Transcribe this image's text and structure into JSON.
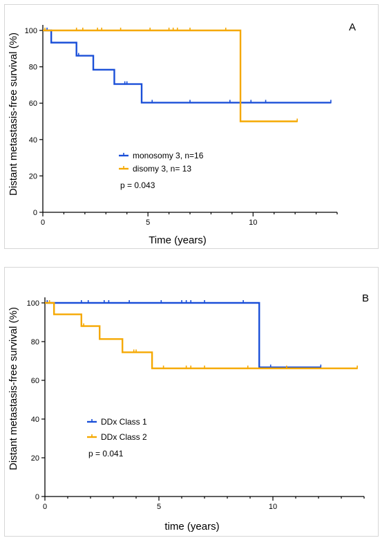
{
  "chart_data": [
    {
      "type": "line",
      "title": "",
      "panel_label": "A",
      "xlabel": "Time (years)",
      "ylabel": "Distant metastasis-free survival (%)",
      "xlim": [
        0,
        14
      ],
      "ylim": [
        0,
        100
      ],
      "xticks": [
        0,
        5,
        10
      ],
      "yticks": [
        0,
        20,
        40,
        60,
        80,
        100
      ],
      "p_value": "p = 0.043",
      "legend_position": "lower-left",
      "series": [
        {
          "name": "monosomy 3, n=16",
          "color": "#1a4fd8",
          "steps": [
            [
              0,
              100
            ],
            [
              0.4,
              93.3
            ],
            [
              1.6,
              86.1
            ],
            [
              2.4,
              78.4
            ],
            [
              3.4,
              70.5
            ],
            [
              4.7,
              60.3
            ],
            [
              13.7,
              60.3
            ]
          ],
          "censored": [
            [
              0.2,
              100
            ],
            [
              1.7,
              86.1
            ],
            [
              3.9,
              70.5
            ],
            [
              4.0,
              70.5
            ],
            [
              5.2,
              60.3
            ],
            [
              7.0,
              60.3
            ],
            [
              8.9,
              60.3
            ],
            [
              9.9,
              60.3
            ],
            [
              10.6,
              60.3
            ],
            [
              13.7,
              60.3
            ]
          ]
        },
        {
          "name": "disomy 3, n= 13",
          "color": "#f5a800",
          "steps": [
            [
              0,
              100
            ],
            [
              9.4,
              100
            ],
            [
              9.4,
              50
            ],
            [
              12.1,
              50
            ]
          ],
          "censored": [
            [
              0.1,
              100
            ],
            [
              1.6,
              100
            ],
            [
              1.9,
              100
            ],
            [
              2.6,
              100
            ],
            [
              2.8,
              100
            ],
            [
              3.7,
              100
            ],
            [
              5.1,
              100
            ],
            [
              6.0,
              100
            ],
            [
              6.2,
              100
            ],
            [
              6.4,
              100
            ],
            [
              7.0,
              100
            ],
            [
              8.7,
              100
            ],
            [
              12.1,
              50
            ]
          ]
        }
      ]
    },
    {
      "type": "line",
      "title": "",
      "panel_label": "B",
      "xlabel": "time (years)",
      "ylabel": "Distant metastasis-free survival (%)",
      "xlim": [
        0,
        14
      ],
      "ylim": [
        0,
        100
      ],
      "xticks": [
        0,
        5,
        10
      ],
      "yticks": [
        0,
        20,
        40,
        60,
        80,
        100
      ],
      "p_value": "p = 0.041",
      "legend_position": "lower-left",
      "series": [
        {
          "name": "DDx Class 1",
          "color": "#1a4fd8",
          "steps": [
            [
              0,
              100
            ],
            [
              9.4,
              100
            ],
            [
              9.4,
              66.7
            ],
            [
              12.1,
              66.7
            ]
          ],
          "censored": [
            [
              0.1,
              100
            ],
            [
              1.6,
              100
            ],
            [
              1.9,
              100
            ],
            [
              2.6,
              100
            ],
            [
              2.8,
              100
            ],
            [
              3.7,
              100
            ],
            [
              5.1,
              100
            ],
            [
              6.0,
              100
            ],
            [
              6.2,
              100
            ],
            [
              6.4,
              100
            ],
            [
              7.0,
              100
            ],
            [
              8.7,
              100
            ],
            [
              9.9,
              66.7
            ],
            [
              12.1,
              66.7
            ]
          ]
        },
        {
          "name": "DDx Class 2",
          "color": "#f5a800",
          "steps": [
            [
              0,
              100
            ],
            [
              0.4,
              94.1
            ],
            [
              1.6,
              88.0
            ],
            [
              2.4,
              81.3
            ],
            [
              3.4,
              74.5
            ],
            [
              4.7,
              66.2
            ],
            [
              13.7,
              66.2
            ]
          ],
          "censored": [
            [
              0.2,
              100
            ],
            [
              1.7,
              88.0
            ],
            [
              3.9,
              74.5
            ],
            [
              4.0,
              74.5
            ],
            [
              5.2,
              66.2
            ],
            [
              6.2,
              66.2
            ],
            [
              6.4,
              66.2
            ],
            [
              7.0,
              66.2
            ],
            [
              8.9,
              66.2
            ],
            [
              10.6,
              66.2
            ],
            [
              13.7,
              66.2
            ]
          ]
        }
      ]
    }
  ]
}
